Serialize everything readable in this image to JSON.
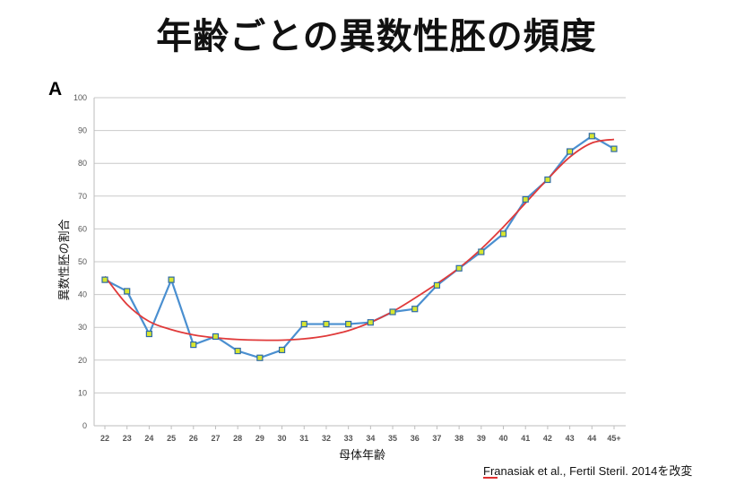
{
  "title": "年齢ごとの異数性胚の頻度",
  "panel_label": "A",
  "citation": "Franasiak et al., Fertil Steril. 2014を改変",
  "chart_data": {
    "type": "line",
    "xlabel": "母体年齢",
    "ylabel": "異数性胚の割合",
    "ylim": [
      0,
      100
    ],
    "yticks": [
      0,
      10,
      20,
      30,
      40,
      50,
      60,
      70,
      80,
      90,
      100
    ],
    "categories": [
      "22",
      "23",
      "24",
      "25",
      "26",
      "27",
      "28",
      "29",
      "30",
      "31",
      "32",
      "33",
      "34",
      "35",
      "36",
      "37",
      "38",
      "39",
      "40",
      "41",
      "42",
      "43",
      "44",
      "45+"
    ],
    "grid": true,
    "legend": "none",
    "series": [
      {
        "values": [
          44.5,
          41,
          28,
          44.5,
          24.7,
          27.2,
          22.8,
          20.7,
          23.1,
          31,
          31,
          31,
          31.5,
          34.7,
          35.6,
          42.8,
          48,
          53,
          58.5,
          69,
          75,
          83.6,
          88.3,
          84.4
        ],
        "line_color": "#4a8fd0",
        "marker_fill": "#d8e630",
        "marker_edge": "#2e6aa6"
      },
      {
        "values": [
          45.5,
          37,
          31.8,
          29.3,
          27.7,
          26.8,
          26.3,
          26.1,
          26.1,
          26.5,
          27.4,
          29,
          31.5,
          34.8,
          38.9,
          43.3,
          48.1,
          53.9,
          60.6,
          67.9,
          75.2,
          81.9,
          86.2,
          87.3
        ],
        "line_color": "#e03a3a"
      }
    ]
  }
}
